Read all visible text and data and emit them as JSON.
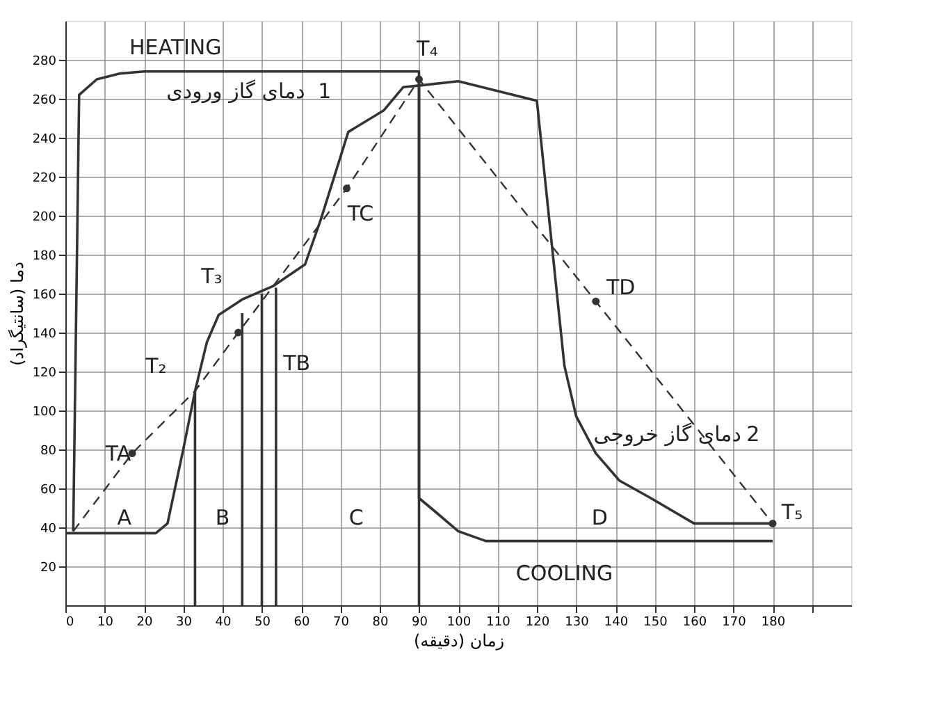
{
  "chart_data": {
    "type": "line",
    "xlabel": "زمان (دقیقه)",
    "ylabel": "دما (سانتیگراد)",
    "xlim": [
      0,
      200
    ],
    "ylim": [
      0,
      300
    ],
    "xticks": [
      0,
      10,
      20,
      30,
      40,
      50,
      60,
      70,
      80,
      90,
      100,
      110,
      120,
      130,
      140,
      150,
      160,
      170,
      180,
      {
        "value": 190,
        "label": null
      }
    ],
    "yticks": [
      20,
      40,
      60,
      80,
      100,
      120,
      140,
      160,
      180,
      200,
      220,
      240,
      260,
      280
    ],
    "grid": true,
    "line_style": "solid",
    "series": [
      {
        "color": "#333333",
        "x": [
          2,
          3.5,
          8,
          14,
          20,
          90,
          90,
          93,
          100,
          107,
          180
        ],
        "values": [
          38,
          262,
          270,
          273,
          274,
          274,
          55,
          50,
          38,
          33,
          33
        ]
      },
      {
        "color": "#333333",
        "x": [
          0,
          23,
          26,
          30,
          33,
          36,
          39,
          45,
          53,
          61,
          65,
          72,
          81,
          86,
          91,
          100,
          120,
          127,
          130,
          135,
          141,
          149,
          160,
          170,
          180
        ],
        "values": [
          37,
          37,
          42,
          80,
          110,
          135,
          149,
          157,
          164,
          175,
          198,
          243,
          254,
          266,
          267,
          269,
          259,
          123,
          97,
          78,
          64,
          55,
          42,
          42,
          42
        ]
      },
      {
        "color": "#333333",
        "line_style": "dashed",
        "x": [
          2,
          17,
          33,
          44,
          71.6,
          90,
          135,
          180
        ],
        "values": [
          38,
          78,
          110,
          140,
          214,
          270,
          156,
          42
        ]
      },
      {
        "color": "#333333",
        "x": [
          33,
          33
        ],
        "values": [
          0,
          110
        ]
      },
      {
        "color": "#333333",
        "x": [
          45,
          45
        ],
        "values": [
          0,
          150
        ]
      },
      {
        "color": "#333333",
        "x": [
          50,
          50
        ],
        "values": [
          0,
          160
        ]
      },
      {
        "color": "#333333",
        "x": [
          53.6,
          53.6
        ],
        "values": [
          0,
          163
        ]
      },
      {
        "color": "#333333",
        "x": [
          90,
          90
        ],
        "values": [
          0,
          270
        ]
      },
      {
        "color": "#333333",
        "type": "scatter",
        "marker": "circle",
        "x": [
          17,
          44,
          71.6,
          90,
          135,
          180
        ],
        "values": [
          78,
          140,
          214,
          270,
          156,
          42
        ]
      }
    ],
    "annotations": [
      "HEATING",
      "COOLING",
      "1",
      "دمای گاز ورودی",
      "2",
      "دمای گاز خروجی",
      {
        "text": "TA",
        "x": 17,
        "y": 78
      },
      {
        "text": "T₂",
        "x": 33,
        "y": 110
      },
      {
        "text": "T₃",
        "x": 39,
        "y": 149
      },
      {
        "text": "TB",
        "x": 44,
        "y": 140
      },
      {
        "text": "TC",
        "x": 71.6,
        "y": 214
      },
      {
        "text": "T₄",
        "x": 90,
        "y": 270
      },
      {
        "text": "TD",
        "x": 135,
        "y": 156
      },
      {
        "text": "T₅",
        "x": 180,
        "y": 42
      },
      "A",
      "B",
      "C",
      "D"
    ]
  }
}
